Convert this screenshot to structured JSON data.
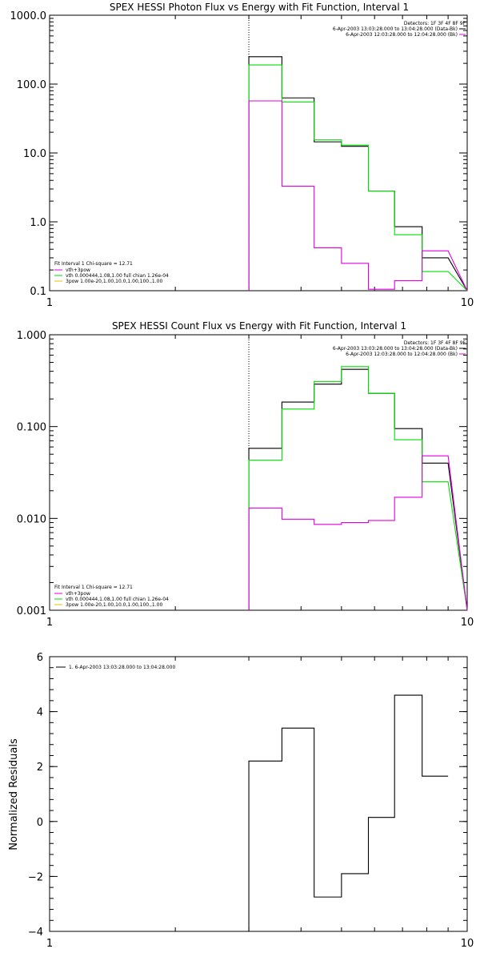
{
  "chart_data": [
    {
      "type": "line",
      "drawstyle": "steps",
      "title": "SPEX HESSI Photon Flux vs Energy with Fit Function, Interval 1",
      "xlabel": "",
      "ylabel": "",
      "x_scale": "log",
      "y_scale": "log",
      "xlim": [
        1,
        10
      ],
      "ylim": [
        0.1,
        1000
      ],
      "x_ticks": [
        "1",
        "10"
      ],
      "y_ticks": [
        "0.1",
        "1.0",
        "10.0",
        "100.0",
        "1000.0"
      ],
      "vline_x": 3,
      "legend_top": [
        "Detectors: 1F 3F 4F 8F 9F",
        "6-Apr-2003 13:03:28.000 to 13:04:28.000 (Data-Bk)",
        "6-Apr-2003 12:03:28.000 to 12:04:28.000 (Bk)"
      ],
      "legend_bottom": [
        "Fit Interval 1    Chi-square = 12.71",
        "vth+3pow",
        "vth 0.000444,1.08,1.00   full chian 1.26e-04",
        "3pow 1.00e-20,1.00,10.0,1.00,100.,1.00"
      ],
      "bin_edges": [
        3.0,
        3.6,
        4.3,
        5.0,
        5.8,
        6.7,
        7.8,
        9.0,
        10.0
      ],
      "series": [
        {
          "color": "#000000",
          "values": [
            250,
            63,
            14.5,
            12.5,
            2.8,
            0.85,
            0.3
          ]
        },
        {
          "color": "#00dd00",
          "values": [
            190,
            55,
            15.5,
            13.0,
            2.8,
            0.65,
            0.19
          ]
        },
        {
          "color": "#e000e0",
          "values": [
            57,
            3.3,
            0.42,
            0.25,
            0.105,
            0.14,
            0.38
          ]
        }
      ]
    },
    {
      "type": "line",
      "drawstyle": "steps",
      "title": "SPEX HESSI Count Flux vs Energy with Fit Function, Interval 1",
      "xlabel": "",
      "ylabel": "",
      "x_scale": "log",
      "y_scale": "log",
      "xlim": [
        1,
        10
      ],
      "ylim": [
        0.001,
        1
      ],
      "x_ticks": [
        "1",
        "10"
      ],
      "y_ticks": [
        "0.001",
        "0.010",
        "0.100",
        "1.000"
      ],
      "vline_x": 3,
      "legend_top": [
        "Detectors: 1F 3F 4F 8F 9F",
        "6-Apr-2003 13:03:28.000 to 13:04:28.000 (Data-Bk)",
        "6-Apr-2003 12:03:28.000 to 12:04:28.000 (Bk)"
      ],
      "legend_bottom": [
        "Fit Interval 1    Chi-square = 12.71",
        "vth+3pow",
        "vth 0.000444,1.08,1.00   full chian 1.26e-04",
        "3pow 1.00e-20,1.00,10.0,1.00,100.,1.00"
      ],
      "bin_edges": [
        3.0,
        3.6,
        4.3,
        5.0,
        5.8,
        6.7,
        7.8,
        9.0,
        10.0
      ],
      "series": [
        {
          "color": "#000000",
          "values": [
            0.058,
            0.185,
            0.29,
            0.42,
            0.23,
            0.095,
            0.04
          ]
        },
        {
          "color": "#00dd00",
          "values": [
            0.043,
            0.155,
            0.31,
            0.45,
            0.23,
            0.072,
            0.025
          ]
        },
        {
          "color": "#e000e0",
          "values": [
            0.013,
            0.0098,
            0.0086,
            0.009,
            0.0095,
            0.017,
            0.048
          ]
        }
      ]
    },
    {
      "type": "line",
      "drawstyle": "steps",
      "title": "",
      "xlabel": "",
      "ylabel": "Normalized Residuals",
      "x_scale": "log",
      "y_scale": "linear",
      "xlim": [
        1,
        10
      ],
      "ylim": [
        -4,
        6
      ],
      "x_ticks": [
        "1",
        "10"
      ],
      "y_ticks": [
        "−4",
        "−2",
        "0",
        "2",
        "4",
        "6"
      ],
      "legend_top": [
        "1.  6-Apr-2003 13:03:28.000 to 13:04:28.000"
      ],
      "bin_edges": [
        3.0,
        3.6,
        4.3,
        5.0,
        5.8,
        6.7,
        7.8,
        9.0,
        10.0
      ],
      "series": [
        {
          "color": "#000000",
          "values": [
            2.2,
            3.4,
            -2.75,
            -1.9,
            0.15,
            4.6,
            1.65
          ]
        }
      ]
    }
  ]
}
